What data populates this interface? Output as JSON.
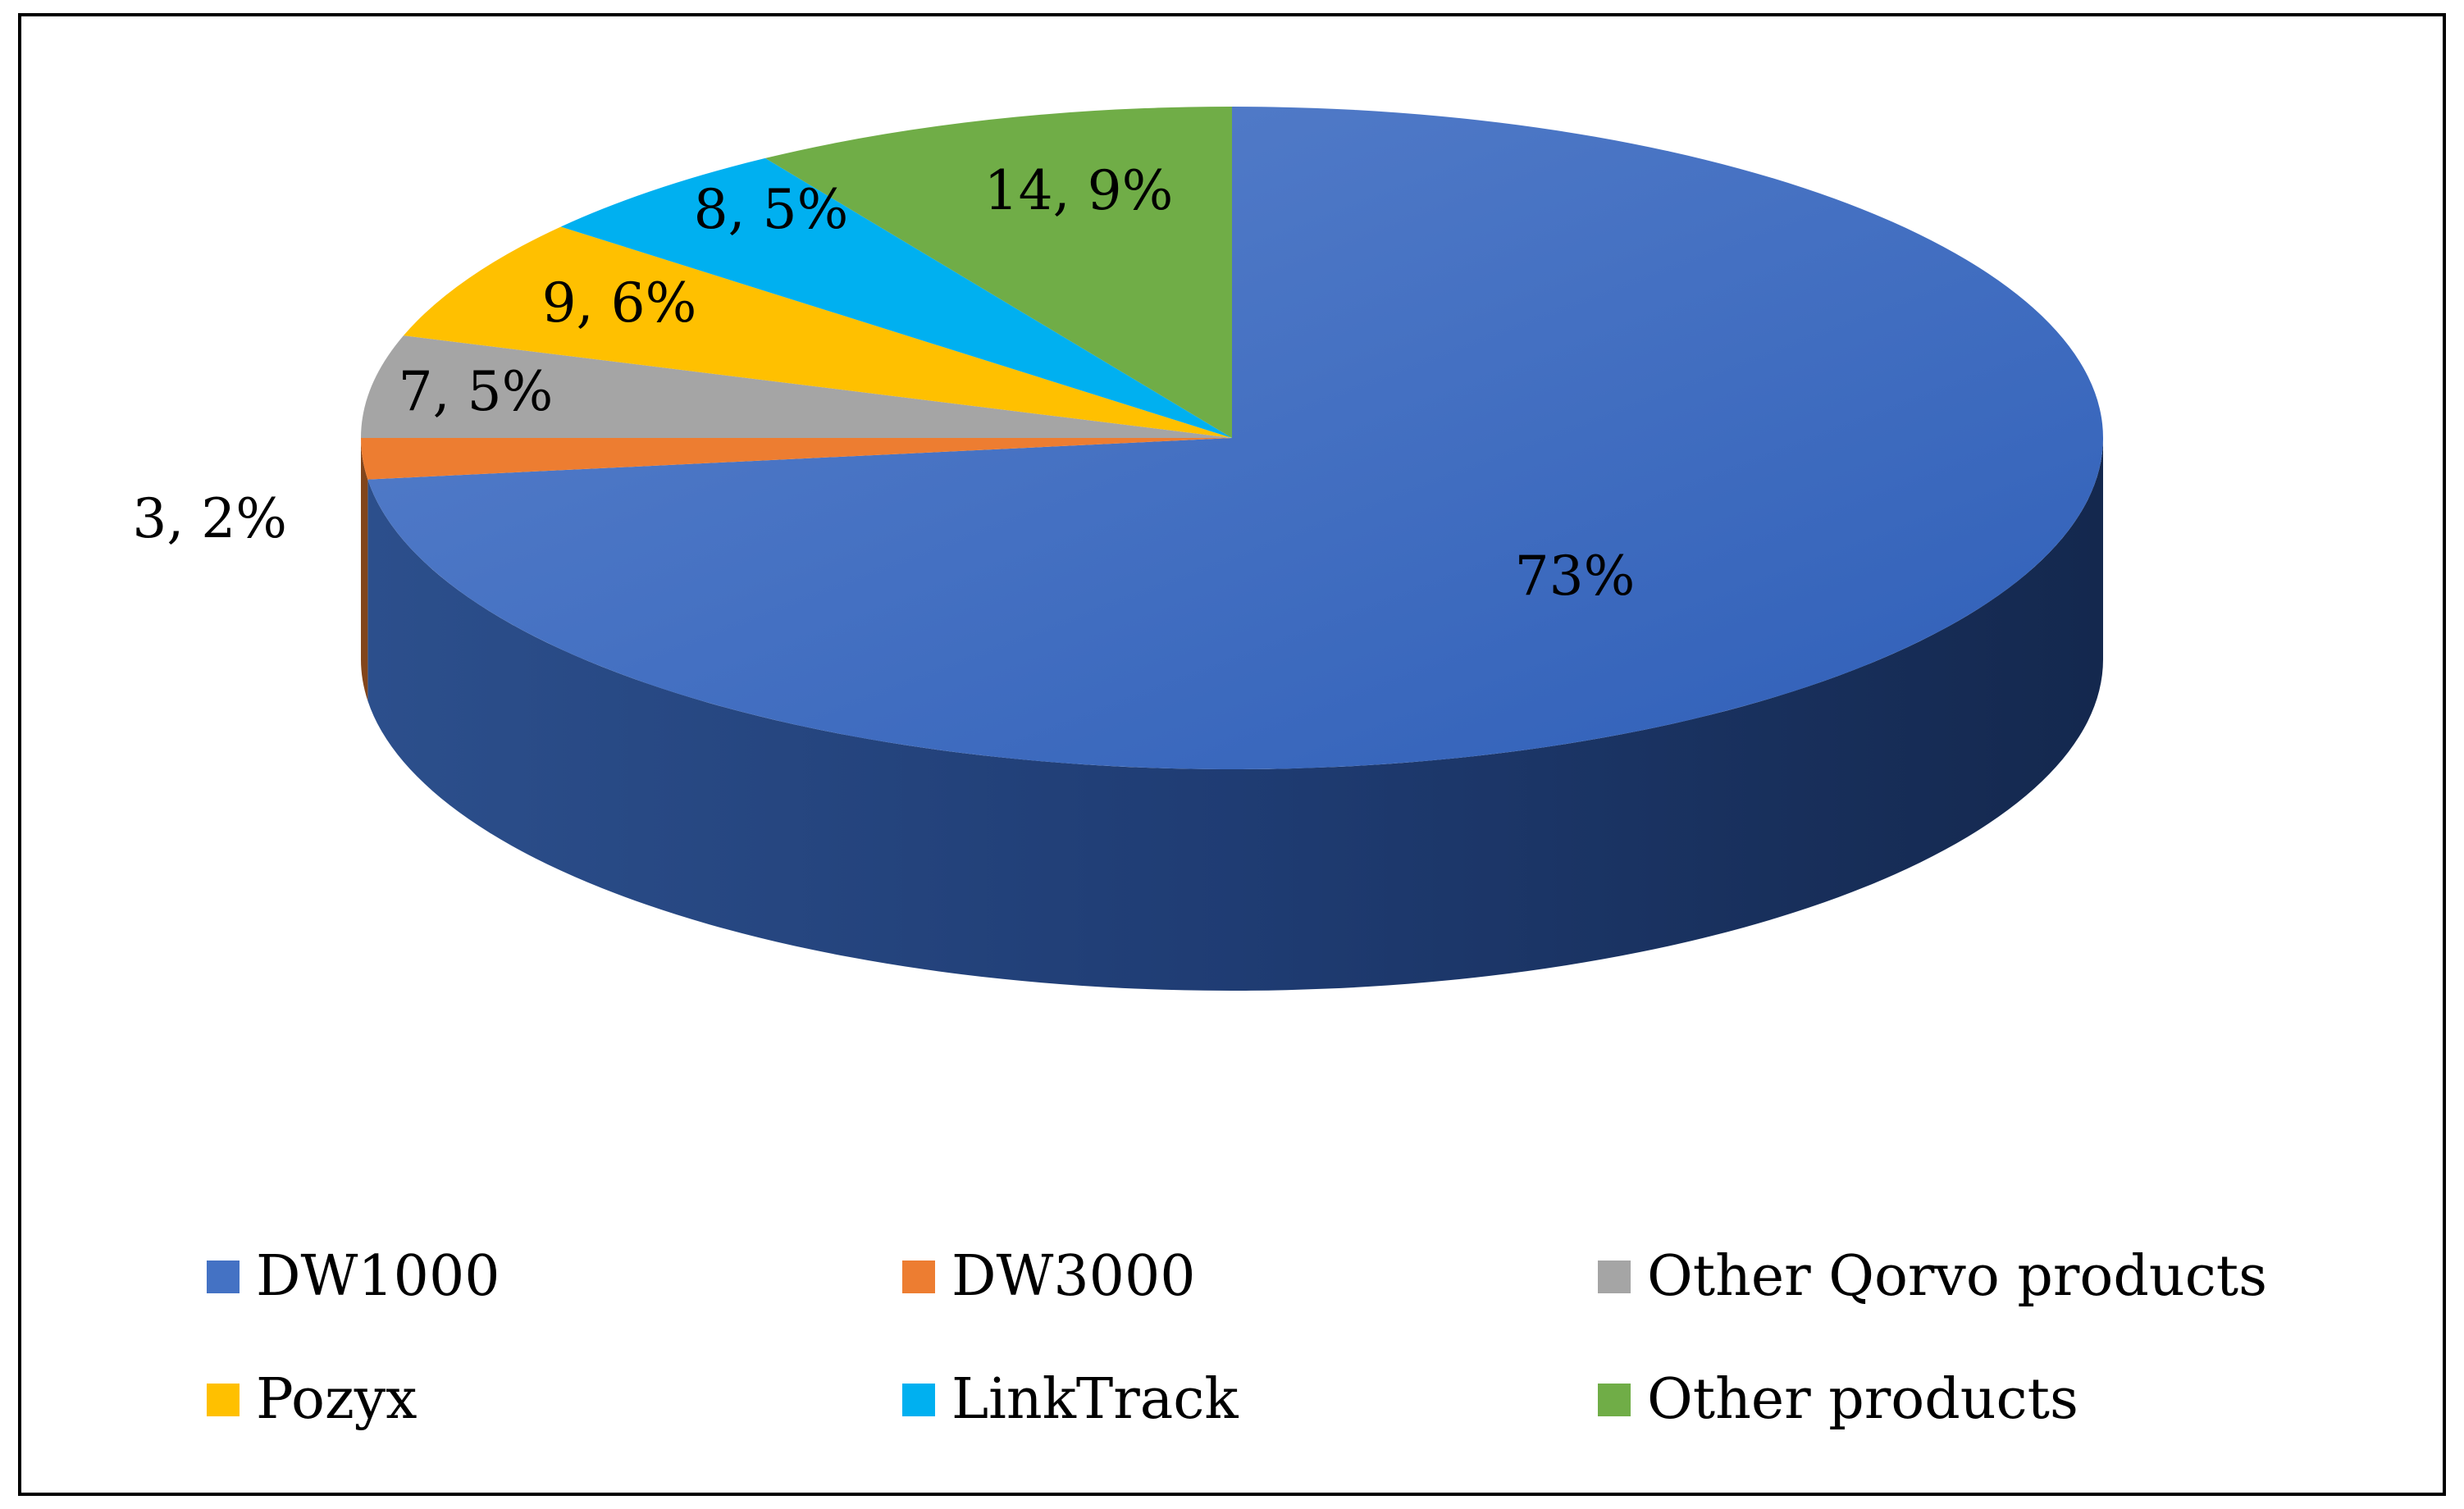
{
  "chart_data": {
    "type": "pie",
    "style": "3d",
    "title": "",
    "categories": [
      "DW1000",
      "DW3000",
      "Other Qorvo products",
      "Pozyx",
      "LinkTrack",
      "Other products"
    ],
    "values": [
      73,
      2,
      5,
      6,
      5,
      9
    ],
    "data_labels": [
      "73%",
      "3, 2%",
      "7, 5%",
      "9, 6%",
      "8, 5%",
      "14, 9%"
    ],
    "colors": [
      "#4472C4",
      "#ED7D31",
      "#A5A5A5",
      "#FFC000",
      "#00B0F0",
      "#70AD47"
    ],
    "legend_position": "bottom"
  }
}
